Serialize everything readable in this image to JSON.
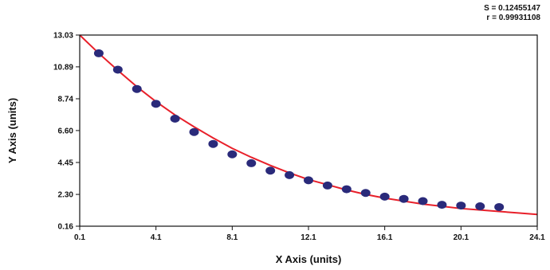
{
  "stats": {
    "s_line": "S = 0.12455147",
    "r_line": "r = 0.99931108"
  },
  "chart_data": {
    "type": "scatter",
    "title": "",
    "xlabel": "X Axis (units)",
    "ylabel": "Y Axis (units)",
    "xlim": [
      0.1,
      24.1
    ],
    "ylim": [
      0.16,
      13.03
    ],
    "x_ticks": [
      "0.1",
      "4.1",
      "8.1",
      "12.1",
      "16.1",
      "20.1",
      "24.1"
    ],
    "y_ticks": [
      "0.16",
      "2.30",
      "4.45",
      "6.60",
      "8.74",
      "10.89",
      "13.03"
    ],
    "grid": false,
    "legend": "none",
    "point_color": "#2a2a7a",
    "curve_color": "#e8202a",
    "points": {
      "x": [
        1.1,
        2.1,
        3.1,
        4.1,
        5.1,
        6.1,
        7.1,
        8.1,
        9.1,
        10.1,
        11.1,
        12.1,
        13.1,
        14.1,
        15.1,
        16.1,
        17.1,
        18.1,
        19.1,
        20.1,
        21.1,
        22.1
      ],
      "y": [
        11.8,
        10.7,
        9.4,
        8.4,
        7.4,
        6.5,
        5.7,
        5.0,
        4.4,
        3.9,
        3.6,
        3.25,
        2.9,
        2.65,
        2.4,
        2.15,
        2.0,
        1.85,
        1.6,
        1.55,
        1.5,
        1.45
      ]
    },
    "fit_curve": {
      "x": [
        0.1,
        1.1,
        2.1,
        3.1,
        4.1,
        5.1,
        6.1,
        7.1,
        8.1,
        9.1,
        10.1,
        11.1,
        12.1,
        13.1,
        14.1,
        15.1,
        16.1,
        17.1,
        18.1,
        19.1,
        20.1,
        21.1,
        22.1,
        23.1,
        24.1
      ],
      "y": [
        13.05,
        11.8,
        10.65,
        9.55,
        8.55,
        7.65,
        6.85,
        6.1,
        5.4,
        4.8,
        4.25,
        3.75,
        3.3,
        2.95,
        2.6,
        2.3,
        2.05,
        1.85,
        1.65,
        1.5,
        1.35,
        1.25,
        1.15,
        1.05,
        0.95
      ]
    }
  }
}
